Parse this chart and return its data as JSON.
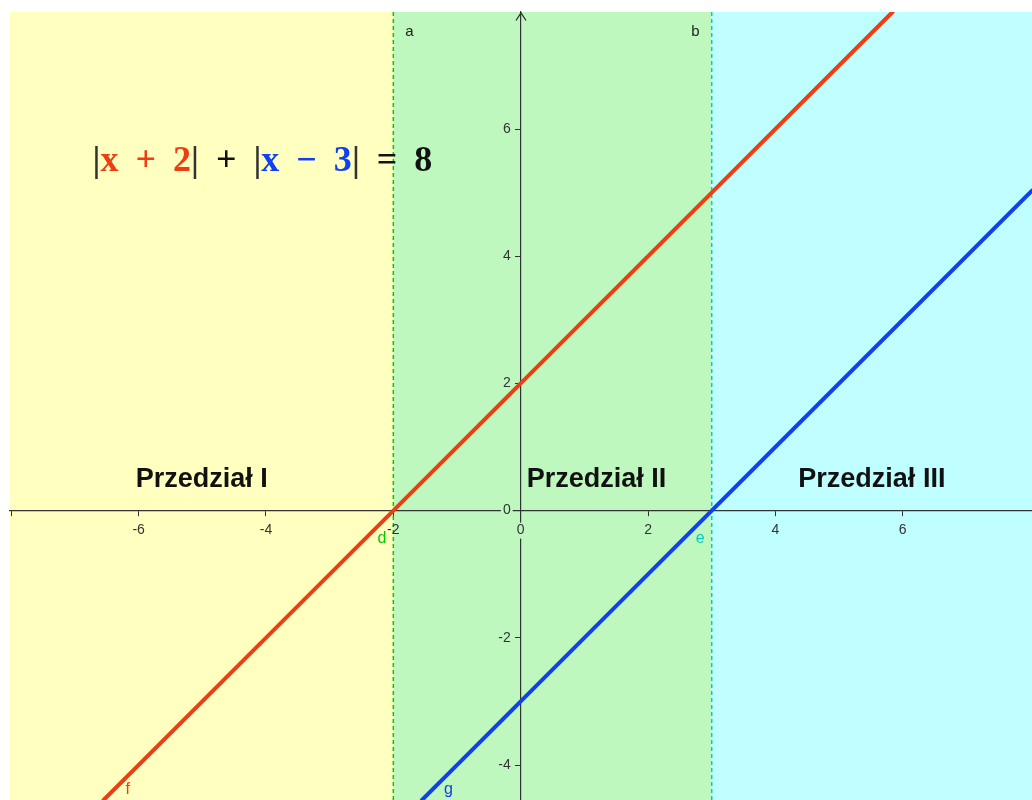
{
  "chart_data": {
    "type": "line",
    "xlim": [
      -8.02,
      8.03
    ],
    "ylim": [
      -4.55,
      7.84
    ],
    "xticks": [
      {
        "value": -8,
        "label": null
      },
      -6,
      -4,
      -2,
      0,
      2,
      4,
      6
    ],
    "yticks": [
      -4,
      -2,
      0,
      2,
      4,
      6
    ],
    "series": [
      {
        "name": "f",
        "color": "#f03c10",
        "x": [
          -6.55,
          -2,
          0,
          3,
          5.84
        ],
        "values": [
          -4.55,
          0,
          2,
          5,
          7.84
        ]
      },
      {
        "name": "g",
        "color": "#1040f0",
        "x": [
          -1.55,
          0,
          3,
          8.03
        ],
        "values": [
          -4.55,
          -3,
          0,
          5.03
        ]
      }
    ],
    "bands": [
      {
        "axis": "x",
        "from": -8.02,
        "to": -2,
        "label": "Przedział I",
        "color": "#ffffbf"
      },
      {
        "axis": "x",
        "from": -2,
        "to": 3,
        "label": "Przedział II",
        "color": "#bff8bf"
      },
      {
        "axis": "x",
        "from": 3,
        "to": 8.03,
        "label": "Przedział III",
        "color": "#bfffff"
      }
    ],
    "ref_lines": [
      {
        "axis": "x",
        "value": -2,
        "label": "a",
        "color": "#00cc00",
        "line_style": "dashed"
      },
      {
        "axis": "x",
        "value": 3,
        "label": "b",
        "color": "#00cccc",
        "line_style": "dashed"
      }
    ],
    "annotations": [
      "|x + 2| + |x − 3| = 8",
      {
        "text": "d",
        "x": -2,
        "y": 0
      },
      {
        "text": "e",
        "x": 3,
        "y": 0
      }
    ],
    "marker": "none"
  }
}
